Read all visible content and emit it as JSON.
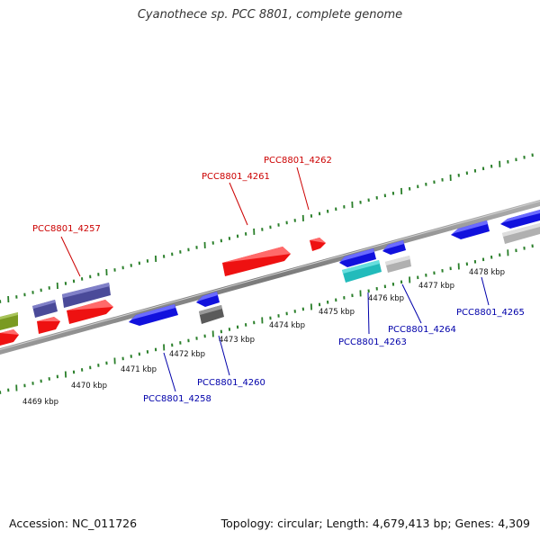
{
  "title": "Cyanothece sp. PCC 8801, complete genome",
  "footer": {
    "accession": "Accession: NC_011726",
    "summary": "Topology: circular; Length: 4,679,413 bp; Genes: 4,309"
  },
  "colors": {
    "forward_label": "#cc0000",
    "reverse_label": "#0000aa",
    "tick": "#2a7f2a",
    "backbone": "#8c8c8c"
  },
  "ticks": [
    {
      "kbp": 4469,
      "label": "4469 kbp"
    },
    {
      "kbp": 4470,
      "label": "4470 kbp"
    },
    {
      "kbp": 4471,
      "label": "4471 kbp"
    },
    {
      "kbp": 4472,
      "label": "4472 kbp"
    },
    {
      "kbp": 4473,
      "label": "4473 kbp"
    },
    {
      "kbp": 4474,
      "label": "4474 kbp"
    },
    {
      "kbp": 4475,
      "label": "4475 kbp"
    },
    {
      "kbp": 4476,
      "label": "4476 kbp"
    },
    {
      "kbp": 4477,
      "label": "4477 kbp"
    },
    {
      "kbp": 4478,
      "label": "4478 kbp"
    }
  ],
  "gene_labels": [
    {
      "text": "PCC8801_4257",
      "strand": "forward"
    },
    {
      "text": "PCC8801_4261",
      "strand": "forward"
    },
    {
      "text": "PCC8801_4262",
      "strand": "forward"
    },
    {
      "text": "PCC8801_4258",
      "strand": "reverse"
    },
    {
      "text": "PCC8801_4260",
      "strand": "reverse"
    },
    {
      "text": "PCC8801_4263",
      "strand": "reverse"
    },
    {
      "text": "PCC8801_4264",
      "strand": "reverse"
    },
    {
      "text": "PCC8801_4265",
      "strand": "reverse"
    }
  ]
}
